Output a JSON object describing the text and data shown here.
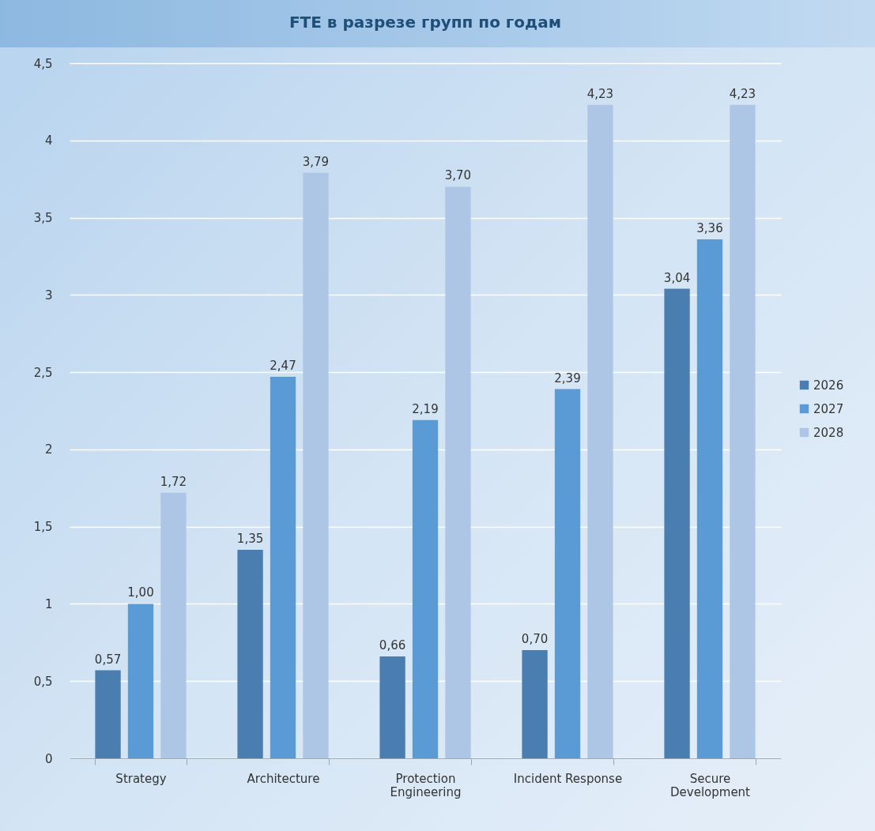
{
  "chart_data": {
    "type": "bar",
    "title": "FTE в разрезе групп по годам",
    "categories": [
      "Strategy",
      "Architecture",
      "Protection Engineering",
      "Incident Response",
      "Secure Development"
    ],
    "series": [
      {
        "name": "2026",
        "color": "#4a7eb0",
        "values": [
          0.57,
          1.35,
          0.66,
          0.7,
          3.04
        ],
        "value_labels": [
          "0,57",
          "1,35",
          "0,66",
          "0,70",
          "3,04"
        ]
      },
      {
        "name": "2027",
        "color": "#5b9bd5",
        "values": [
          1.0,
          2.47,
          2.19,
          2.39,
          3.36
        ],
        "value_labels": [
          "1,00",
          "2,47",
          "2,19",
          "2,39",
          "3,36"
        ]
      },
      {
        "name": "2028",
        "color": "#adc6e5",
        "values": [
          1.72,
          3.79,
          3.7,
          4.23,
          4.23
        ],
        "value_labels": [
          "1,72",
          "3,79",
          "3,70",
          "4,23",
          "4,23"
        ]
      }
    ],
    "ylim": [
      0,
      4.5
    ],
    "yticks": [
      0,
      {
        "value": 0.5,
        "label": "0,5"
      },
      1,
      {
        "value": 1.5,
        "label": "1,5"
      },
      2,
      {
        "value": 2.5,
        "label": "2,5"
      },
      3,
      {
        "value": 3.5,
        "label": "3,5"
      },
      4,
      {
        "value": 4.5,
        "label": "4,5"
      }
    ],
    "grid": "y",
    "legend": "right"
  }
}
